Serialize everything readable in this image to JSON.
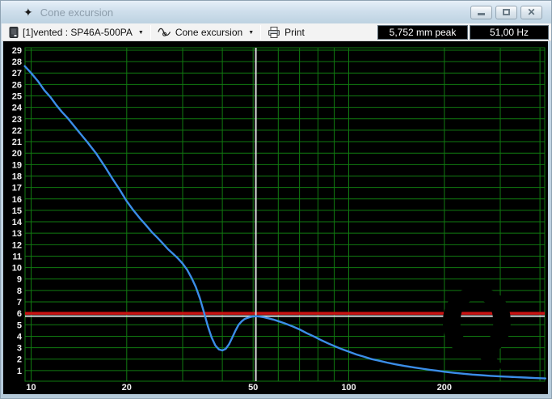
{
  "window": {
    "title": "Cone excursion",
    "icon": "four-pointed-star",
    "controls": {
      "minimize": "minimize",
      "maximize": "maximize",
      "close": "close"
    }
  },
  "toolbar": {
    "driver_selector_label": "[1]vented : SP46A-500PA",
    "graph_selector_label": "Cone excursion",
    "print_label": "Print",
    "peak_readout": "5,752 mm peak",
    "frequency_readout": "51,00 Hz"
  },
  "chart_data": {
    "type": "line",
    "title": "Cone excursion",
    "x_scale": "log",
    "x_range_hz": [
      9.55,
      416
    ],
    "y_range_mm": [
      0,
      29.2
    ],
    "grid": true,
    "x_tick_labels": [
      10,
      20,
      50,
      100,
      200
    ],
    "x_gridlines": [
      10,
      20,
      30,
      40,
      50,
      60,
      70,
      80,
      90,
      100,
      200,
      300,
      400
    ],
    "y_tick_labels": [
      1,
      2,
      3,
      4,
      5,
      6,
      7,
      8,
      9,
      10,
      11,
      12,
      13,
      14,
      15,
      16,
      17,
      18,
      19,
      20,
      21,
      22,
      23,
      24,
      25,
      26,
      27,
      28,
      29
    ],
    "xmax_line_mm": 6,
    "cursor": {
      "frequency_hz": 51.0,
      "excursion_mm": 5.752
    },
    "watermark": "Q",
    "colors": {
      "background": "#000000",
      "grid": "#117a11",
      "curve": "#3b8de8",
      "xmax_line": "#c81212",
      "cursor_line": "#d9d9d9",
      "tick_label": "#f0f0f0",
      "watermark": "#000000"
    },
    "series": [
      {
        "name": "vented : SP46A-500PA",
        "unit": "mm",
        "points": [
          [
            9.55,
            27.6
          ],
          [
            10,
            27.0
          ],
          [
            10.5,
            26.3
          ],
          [
            11,
            25.5
          ],
          [
            11.5,
            24.9
          ],
          [
            12,
            24.2
          ],
          [
            12.5,
            23.6
          ],
          [
            13,
            23.1
          ],
          [
            14,
            22.0
          ],
          [
            15,
            21.0
          ],
          [
            16,
            20.0
          ],
          [
            17,
            18.9
          ],
          [
            18,
            17.8
          ],
          [
            19,
            16.8
          ],
          [
            20,
            15.8
          ],
          [
            21,
            15.0
          ],
          [
            22,
            14.3
          ],
          [
            23,
            13.7
          ],
          [
            24,
            13.1
          ],
          [
            25,
            12.6
          ],
          [
            26,
            12.1
          ],
          [
            27,
            11.6
          ],
          [
            28,
            11.2
          ],
          [
            29,
            10.8
          ],
          [
            30,
            10.35
          ],
          [
            31,
            9.8
          ],
          [
            32,
            9.1
          ],
          [
            33,
            8.3
          ],
          [
            34,
            7.3
          ],
          [
            35,
            6.1
          ],
          [
            36,
            4.9
          ],
          [
            37,
            3.9
          ],
          [
            38,
            3.2
          ],
          [
            39,
            2.85
          ],
          [
            40,
            2.76
          ],
          [
            41,
            2.9
          ],
          [
            42,
            3.3
          ],
          [
            43,
            3.9
          ],
          [
            44,
            4.5
          ],
          [
            45,
            5.0
          ],
          [
            46,
            5.3
          ],
          [
            47,
            5.5
          ],
          [
            48,
            5.6
          ],
          [
            49,
            5.68
          ],
          [
            50,
            5.73
          ],
          [
            51,
            5.752
          ],
          [
            52,
            5.73
          ],
          [
            54,
            5.66
          ],
          [
            56,
            5.56
          ],
          [
            58,
            5.45
          ],
          [
            60,
            5.32
          ],
          [
            63,
            5.12
          ],
          [
            66,
            4.9
          ],
          [
            70,
            4.6
          ],
          [
            74,
            4.25
          ],
          [
            78,
            3.95
          ],
          [
            82,
            3.65
          ],
          [
            86,
            3.38
          ],
          [
            90,
            3.15
          ],
          [
            95,
            2.88
          ],
          [
            100,
            2.65
          ],
          [
            106,
            2.4
          ],
          [
            112,
            2.2
          ],
          [
            118,
            2.0
          ],
          [
            125,
            1.85
          ],
          [
            132,
            1.7
          ],
          [
            140,
            1.55
          ],
          [
            150,
            1.4
          ],
          [
            160,
            1.28
          ],
          [
            170,
            1.17
          ],
          [
            180,
            1.07
          ],
          [
            190,
            0.98
          ],
          [
            200,
            0.9
          ],
          [
            215,
            0.8
          ],
          [
            230,
            0.72
          ],
          [
            245,
            0.65
          ],
          [
            260,
            0.6
          ],
          [
            280,
            0.54
          ],
          [
            300,
            0.49
          ],
          [
            320,
            0.45
          ],
          [
            340,
            0.42
          ],
          [
            360,
            0.39
          ],
          [
            385,
            0.35
          ],
          [
            416,
            0.31
          ]
        ]
      }
    ]
  }
}
